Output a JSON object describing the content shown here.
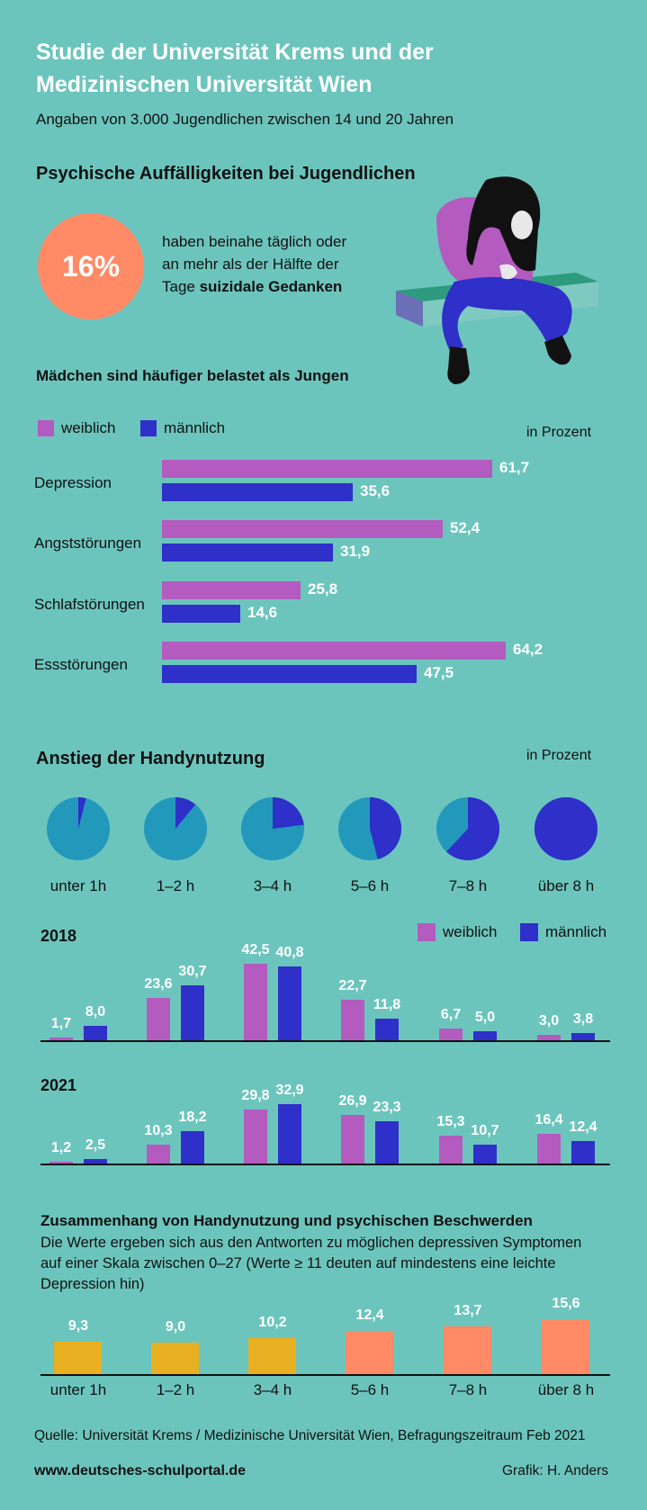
{
  "header": {
    "title_line1": "Studie der Universität Krems und der",
    "title_line2": "Medizinischen Universität Wien",
    "subtitle": "Angaben von 3.000 Jugendlichen zwischen 14 und 20 Jahren"
  },
  "section1": {
    "heading": "Psychische Auffälligkeiten bei Jugendlichen",
    "stat_value": "16%",
    "stat_text_line1": "haben beinahe täglich oder",
    "stat_text_line2": "an mehr als der Hälfte der",
    "stat_text_line3_plain": "Tage ",
    "stat_text_line3_bold": "suizidale Gedanken"
  },
  "colors": {
    "female": "#b35bbf",
    "male": "#2f2fc9",
    "pie_base": "#2299bb",
    "depression_low": "#e8b020",
    "depression_high": "#ff8a65",
    "background": "#6cc5bd"
  },
  "legend": {
    "female": "weiblich",
    "male": "männlich"
  },
  "chart_data": [
    {
      "type": "bar",
      "orientation": "horizontal",
      "title": "Mädchen sind häufiger belastet als Jungen",
      "unit_label": "in Prozent",
      "categories": [
        "Depression",
        "Angststörungen",
        "Schlafstörungen",
        "Essstörungen"
      ],
      "value_labels": {
        "female": [
          "61,7",
          "52,4",
          "25,8",
          "64,2"
        ],
        "male": [
          "35,6",
          "31,9",
          "14,6",
          "47,5"
        ]
      },
      "series": [
        {
          "name": "weiblich",
          "values": [
            61.7,
            52.4,
            25.8,
            64.2
          ]
        },
        {
          "name": "männlich",
          "values": [
            35.6,
            31.9,
            14.6,
            47.5
          ]
        }
      ]
    },
    {
      "type": "pie",
      "title": "Anstieg der Handynutzung",
      "unit_label": "in Prozent",
      "categories": [
        "unter 1h",
        "1–2 h",
        "3–4 h",
        "5–6 h",
        "7–8 h",
        "über 8 h"
      ],
      "highlighted_fraction": [
        0.04,
        0.11,
        0.23,
        0.46,
        0.62,
        1.0
      ]
    },
    {
      "type": "bar",
      "title": "2018",
      "categories": [
        "unter 1h",
        "1–2 h",
        "3–4 h",
        "5–6 h",
        "7–8 h",
        "über 8 h"
      ],
      "value_labels": {
        "female": [
          "1,7",
          "23,6",
          "42,5",
          "22,7",
          "6,7",
          "3,0"
        ],
        "male": [
          "8,0",
          "30,7",
          "40,8",
          "11,8",
          "5,0",
          "3,8"
        ]
      },
      "series": [
        {
          "name": "weiblich",
          "values": [
            1.7,
            23.6,
            42.5,
            22.7,
            6.7,
            3.0
          ]
        },
        {
          "name": "männlich",
          "values": [
            8.0,
            30.7,
            40.8,
            11.8,
            5.0,
            3.8
          ]
        }
      ]
    },
    {
      "type": "bar",
      "title": "2021",
      "categories": [
        "unter 1h",
        "1–2 h",
        "3–4 h",
        "5–6 h",
        "7–8 h",
        "über 8 h"
      ],
      "value_labels": {
        "female": [
          "1,2",
          "10,3",
          "29,8",
          "26,9",
          "15,3",
          "16,4"
        ],
        "male": [
          "2,5",
          "18,2",
          "32,9",
          "23,3",
          "10,7",
          "12,4"
        ]
      },
      "series": [
        {
          "name": "weiblich",
          "values": [
            1.2,
            10.3,
            29.8,
            26.9,
            15.3,
            16.4
          ]
        },
        {
          "name": "männlich",
          "values": [
            2.5,
            18.2,
            32.9,
            23.3,
            10.7,
            12.4
          ]
        }
      ]
    },
    {
      "type": "bar",
      "title": "Zusammenhang von Handynutzung und psychischen Beschwerden",
      "categories": [
        "unter 1h",
        "1–2 h",
        "3–4 h",
        "5–6 h",
        "7–8 h",
        "über 8 h"
      ],
      "value_labels": [
        "9,3",
        "9,0",
        "10,2",
        "12,4",
        "13,7",
        "15,6"
      ],
      "values": [
        9.3,
        9.0,
        10.2,
        12.4,
        13.7,
        15.6
      ]
    }
  ],
  "section4": {
    "desc_line1": "Die Werte ergeben sich aus den Antworten zu möglichen depressiven Symptomen",
    "desc_line2": "auf einer Skala zwischen 0–27 (Werte ≥ 11 deuten auf mindestens eine leichte",
    "desc_line3": "Depression hin)"
  },
  "footer": {
    "source": "Quelle: Universität Krems / Medizinische Universität Wien, Befragungszeitraum Feb 2021",
    "website": "www.deutsches-schulportal.de",
    "credit": "Grafik: H. Anders"
  }
}
